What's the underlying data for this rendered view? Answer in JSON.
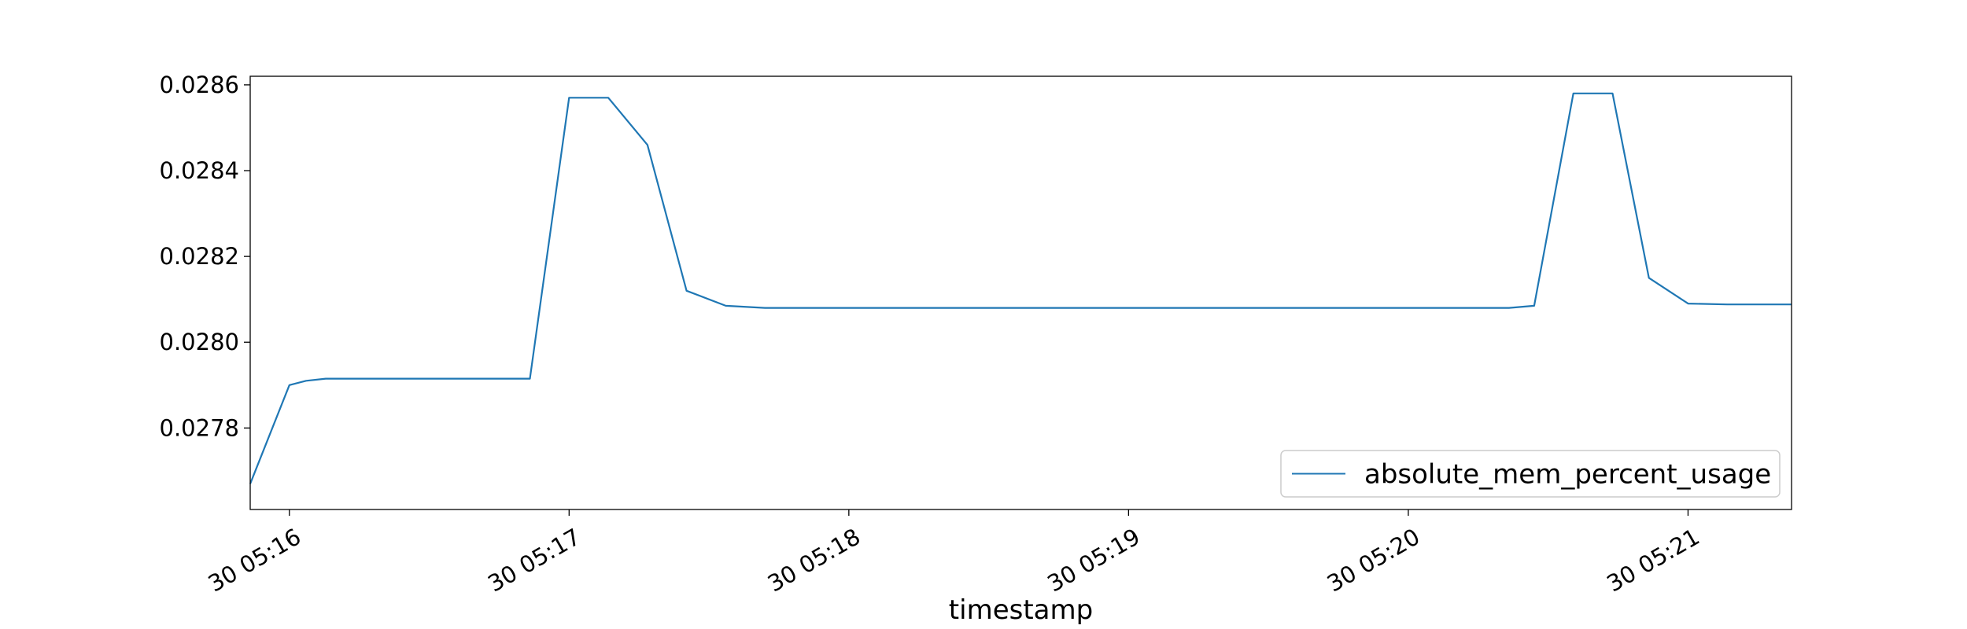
{
  "chart_data": {
    "type": "line",
    "title": "",
    "xlabel": "timestamp",
    "ylabel": "",
    "x_ticks": [
      "30 05:16",
      "30 05:17",
      "30 05:18",
      "30 05:19",
      "30 05:20",
      "30 05:21"
    ],
    "y_ticks": [
      "0.0278",
      "0.0280",
      "0.0282",
      "0.0284",
      "0.0286"
    ],
    "ylim": [
      0.02761,
      0.02862
    ],
    "xlim_minutes": [
      15.86,
      21.37
    ],
    "grid": false,
    "legend_position": "lower-right",
    "series": [
      {
        "name": "absolute_mem_percent_usage",
        "color": "#1f77b4",
        "x": [
          15.86,
          16.0,
          16.06,
          16.13,
          16.2,
          16.27,
          16.34,
          16.41,
          16.48,
          16.55,
          16.62,
          16.68,
          16.75,
          16.82,
          16.86,
          17.0,
          17.14,
          17.28,
          17.42,
          17.56,
          17.7,
          17.84,
          17.98,
          18.12,
          18.26,
          18.4,
          18.54,
          18.68,
          18.82,
          18.96,
          19.1,
          19.24,
          19.38,
          19.52,
          19.66,
          19.8,
          19.94,
          20.08,
          20.22,
          20.36,
          20.45,
          20.59,
          20.73,
          20.86,
          21.0,
          21.14,
          21.28,
          21.37
        ],
        "y": [
          0.02767,
          0.0279,
          0.02791,
          0.027915,
          0.027915,
          0.027915,
          0.027915,
          0.027915,
          0.027915,
          0.027915,
          0.027915,
          0.027915,
          0.027915,
          0.027915,
          0.027915,
          0.02857,
          0.02857,
          0.02846,
          0.02812,
          0.028085,
          0.02808,
          0.02808,
          0.02808,
          0.02808,
          0.02808,
          0.02808,
          0.02808,
          0.02808,
          0.02808,
          0.02808,
          0.02808,
          0.02808,
          0.02808,
          0.02808,
          0.02808,
          0.02808,
          0.02808,
          0.02808,
          0.02808,
          0.02808,
          0.028085,
          0.02858,
          0.02858,
          0.02815,
          0.02809,
          0.028088,
          0.028088,
          0.028088
        ]
      }
    ]
  }
}
